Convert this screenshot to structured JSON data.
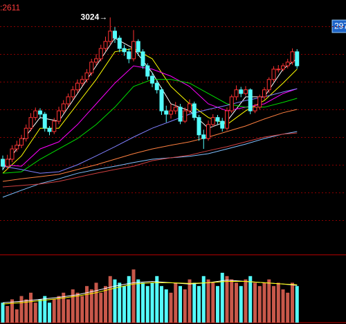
{
  "chart_data": {
    "type": "candlestick",
    "top_label": ":2611",
    "last_label": "297",
    "annotations": [
      {
        "text": "3024→",
        "x": 23,
        "value": 3024
      }
    ],
    "up_color": "#ff3232",
    "down_color": "#54fcfc",
    "grid": true,
    "grid_color": "#8b0000",
    "ylim": [
      2381.25,
      3071.25
    ],
    "yticks": [
      2475,
      2550,
      2625,
      2700,
      2775,
      2850,
      2925,
      3000
    ],
    "open": [
      2640,
      2621,
      2640,
      2668,
      2678,
      2696,
      2724,
      2753,
      2771,
      2762,
      2724,
      2715,
      2743,
      2771,
      2790,
      2809,
      2828,
      2846,
      2856,
      2874,
      2903,
      2912,
      2940,
      2959,
      2987,
      2968,
      2940,
      2931,
      2912,
      2959,
      2931,
      2893,
      2865,
      2846,
      2828,
      2771,
      2762,
      2771,
      2781,
      2743,
      2771,
      2790,
      2753,
      2706,
      2696,
      2734,
      2753,
      2743,
      2724,
      2771,
      2809,
      2828,
      2818,
      2828,
      2771,
      2781,
      2809,
      2828,
      2856,
      2884,
      2884,
      2893,
      2903,
      2931
    ],
    "close": [
      2621,
      2640,
      2668,
      2678,
      2696,
      2724,
      2753,
      2771,
      2762,
      2724,
      2715,
      2743,
      2771,
      2790,
      2809,
      2828,
      2846,
      2856,
      2874,
      2903,
      2912,
      2940,
      2959,
      2987,
      2968,
      2940,
      2931,
      2912,
      2959,
      2931,
      2893,
      2865,
      2846,
      2828,
      2771,
      2762,
      2771,
      2781,
      2743,
      2771,
      2790,
      2753,
      2706,
      2696,
      2734,
      2753,
      2743,
      2724,
      2771,
      2809,
      2828,
      2818,
      2828,
      2771,
      2781,
      2809,
      2828,
      2856,
      2884,
      2884,
      2893,
      2903,
      2931,
      2893
    ],
    "high": [
      2650,
      2652,
      2678,
      2690,
      2706,
      2734,
      2765,
      2780,
      2778,
      2768,
      2730,
      2752,
      2782,
      2800,
      2818,
      2838,
      2856,
      2866,
      2884,
      2912,
      2925,
      2950,
      2972,
      3024,
      2998,
      2975,
      2950,
      2940,
      2990,
      2965,
      2938,
      2900,
      2875,
      2855,
      2835,
      2785,
      2790,
      2795,
      2790,
      2780,
      2802,
      2796,
      2760,
      2720,
      2745,
      2762,
      2760,
      2752,
      2780,
      2815,
      2840,
      2836,
      2838,
      2832,
      2790,
      2815,
      2835,
      2862,
      2892,
      2895,
      2900,
      2912,
      2940,
      2938
    ],
    "low": [
      2610,
      2612,
      2632,
      2660,
      2670,
      2688,
      2716,
      2745,
      2750,
      2715,
      2705,
      2708,
      2735,
      2764,
      2782,
      2800,
      2820,
      2838,
      2848,
      2866,
      2895,
      2905,
      2932,
      2950,
      2955,
      2930,
      2920,
      2900,
      2905,
      2920,
      2885,
      2855,
      2835,
      2818,
      2760,
      2740,
      2750,
      2762,
      2735,
      2738,
      2765,
      2745,
      2690,
      2668,
      2690,
      2728,
      2735,
      2715,
      2718,
      2765,
      2800,
      2808,
      2812,
      2762,
      2765,
      2775,
      2802,
      2820,
      2850,
      2875,
      2878,
      2886,
      2896,
      2885
    ],
    "lines": [
      {
        "color": "#ffffff",
        "x": [
          0,
          4,
          8,
          12,
          16,
          20,
          24,
          28,
          32,
          36,
          40,
          44,
          48,
          52,
          56,
          60,
          63
        ],
        "values": [
          2612,
          2687,
          2753,
          2743,
          2818,
          2893,
          2968,
          2940,
          2874,
          2790,
          2771,
          2724,
          2743,
          2809,
          2809,
          2884,
          2912
        ]
      },
      {
        "color": "#ffff00",
        "x": [
          0,
          4,
          8,
          12,
          16,
          20,
          24,
          28,
          32,
          36,
          40,
          44,
          48,
          52,
          56,
          60,
          63
        ],
        "values": [
          2602,
          2649,
          2724,
          2724,
          2790,
          2856,
          2931,
          2940,
          2912,
          2837,
          2790,
          2753,
          2734,
          2771,
          2799,
          2846,
          2884
        ]
      },
      {
        "color": "#ff00ff",
        "x": [
          0,
          4,
          8,
          12,
          16,
          20,
          24,
          28,
          32,
          36,
          40,
          44,
          48,
          52,
          56,
          60,
          63
        ],
        "values": [
          2625,
          2621,
          2668,
          2687,
          2734,
          2790,
          2846,
          2893,
          2884,
          2865,
          2837,
          2790,
          2771,
          2781,
          2790,
          2818,
          2831
        ]
      },
      {
        "color": "#00e000",
        "x": [
          0,
          4,
          8,
          12,
          16,
          20,
          24,
          28,
          32,
          36,
          40,
          44,
          48,
          52,
          56,
          60,
          63
        ],
        "values": [
          2602,
          2606,
          2640,
          2668,
          2696,
          2734,
          2781,
          2837,
          2856,
          2856,
          2846,
          2818,
          2790,
          2781,
          2781,
          2794,
          2805
        ]
      },
      {
        "color": "#8080ff",
        "x": [
          0,
          4,
          8,
          12,
          16,
          20,
          24,
          28,
          32,
          36,
          40,
          44,
          48,
          52,
          56,
          60,
          63
        ],
        "values": [
          2621,
          2612,
          2602,
          2606,
          2625,
          2649,
          2674,
          2700,
          2724,
          2743,
          2762,
          2775,
          2786,
          2799,
          2809,
          2822,
          2831
        ]
      },
      {
        "color": "#ff8040",
        "x": [
          0,
          4,
          8,
          12,
          16,
          20,
          24,
          28,
          32,
          36,
          40,
          44,
          48,
          52,
          56,
          60,
          63
        ],
        "values": [
          2580,
          2587,
          2593,
          2599,
          2612,
          2625,
          2640,
          2655,
          2668,
          2678,
          2687,
          2700,
          2715,
          2730,
          2749,
          2766,
          2775
        ]
      },
      {
        "color": "#80c0ff",
        "x": [
          0,
          4,
          8,
          12,
          16,
          20,
          24,
          28,
          32,
          36,
          40,
          44,
          48,
          52,
          56,
          60,
          63
        ],
        "values": [
          2537,
          2556,
          2574,
          2587,
          2602,
          2612,
          2621,
          2631,
          2640,
          2644,
          2648,
          2655,
          2668,
          2681,
          2696,
          2708,
          2715
        ]
      },
      {
        "color": "#d04040",
        "x": [
          0,
          4,
          8,
          12,
          16,
          20,
          24,
          28,
          32,
          36,
          40,
          44,
          48,
          52,
          56,
          60,
          63
        ],
        "values": [
          2565,
          2569,
          2573,
          2580,
          2591,
          2602,
          2612,
          2621,
          2636,
          2644,
          2651,
          2663,
          2674,
          2687,
          2700,
          2708,
          2711
        ]
      }
    ],
    "volume": {
      "ylim": [
        0,
        100
      ],
      "up_color": "#c8584a",
      "down_color": "#54fcfc",
      "values": [
        30,
        25,
        35,
        20,
        40,
        35,
        45,
        30,
        35,
        40,
        30,
        35,
        40,
        45,
        35,
        50,
        45,
        40,
        55,
        50,
        60,
        45,
        55,
        70,
        65,
        60,
        55,
        70,
        80,
        65,
        60,
        55,
        60,
        70,
        55,
        50,
        45,
        60,
        55,
        50,
        65,
        60,
        55,
        70,
        65,
        60,
        55,
        75,
        70,
        65,
        60,
        55,
        65,
        70,
        60,
        55,
        60,
        65,
        55,
        60,
        50,
        45,
        60,
        55
      ],
      "lines": [
        {
          "color": "#ffffff",
          "x": [
            0,
            4,
            8,
            12,
            16,
            20,
            24,
            28,
            32,
            36,
            40,
            44,
            48,
            52,
            56,
            60,
            63
          ],
          "values": [
            30,
            32,
            35,
            38,
            42,
            48,
            55,
            60,
            62,
            60,
            58,
            60,
            64,
            62,
            60,
            58,
            56
          ]
        },
        {
          "color": "#ffff00",
          "x": [
            0,
            4,
            8,
            12,
            16,
            20,
            24,
            28,
            32,
            36,
            40,
            44,
            48,
            52,
            56,
            60,
            63
          ],
          "values": [
            28,
            30,
            33,
            36,
            40,
            45,
            52,
            58,
            60,
            60,
            59,
            60,
            62,
            62,
            60,
            58,
            57
          ]
        }
      ]
    }
  }
}
